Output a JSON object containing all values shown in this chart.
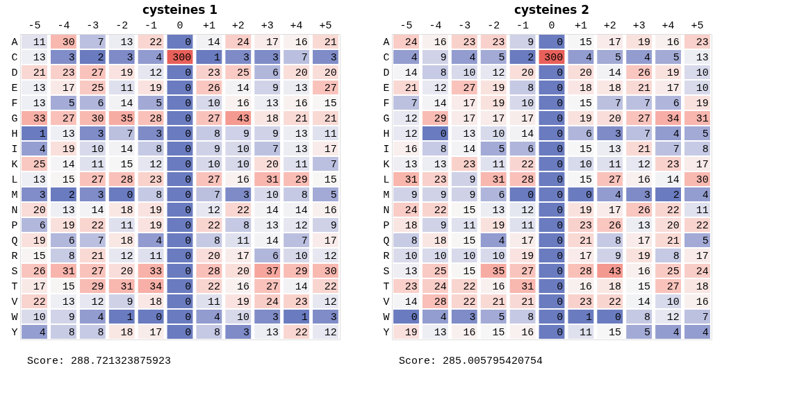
{
  "chart_data": [
    {
      "type": "heatmap",
      "title": "cysteines 1",
      "annotations": [
        "Score: 288.721323875923"
      ],
      "data_labels": true,
      "grid": false,
      "legend": false,
      "colors": [
        "#6a7bbf",
        "#f7f7f7",
        "#e8605a"
      ],
      "categories": [
        "-5",
        "-4",
        "-3",
        "-2",
        "-1",
        "0",
        "+1",
        "+2",
        "+3",
        "+4",
        "+5"
      ],
      "y_categories": [
        "A",
        "C",
        "D",
        "E",
        "F",
        "G",
        "H",
        "I",
        "K",
        "L",
        "M",
        "N",
        "P",
        "Q",
        "R",
        "S",
        "T",
        "V",
        "W",
        "Y"
      ],
      "cells": [
        [
          11,
          30,
          7,
          13,
          22,
          0,
          14,
          24,
          17,
          16,
          21
        ],
        [
          13,
          3,
          2,
          3,
          4,
          300,
          1,
          3,
          3,
          7,
          3
        ],
        [
          21,
          23,
          27,
          19,
          12,
          0,
          23,
          25,
          6,
          20,
          20
        ],
        [
          13,
          17,
          25,
          11,
          19,
          0,
          26,
          14,
          9,
          13,
          27
        ],
        [
          13,
          5,
          6,
          14,
          5,
          0,
          10,
          16,
          13,
          16,
          15
        ],
        [
          33,
          27,
          30,
          35,
          28,
          0,
          27,
          43,
          18,
          21,
          21
        ],
        [
          1,
          13,
          3,
          7,
          3,
          0,
          8,
          9,
          9,
          13,
          11
        ],
        [
          4,
          19,
          10,
          14,
          8,
          0,
          9,
          10,
          7,
          13,
          17
        ],
        [
          25,
          14,
          11,
          15,
          12,
          0,
          10,
          10,
          20,
          11,
          7
        ],
        [
          13,
          15,
          27,
          28,
          23,
          0,
          27,
          16,
          31,
          29,
          15
        ],
        [
          3,
          2,
          3,
          0,
          8,
          0,
          7,
          3,
          10,
          8,
          5
        ],
        [
          20,
          13,
          14,
          18,
          19,
          0,
          12,
          22,
          14,
          14,
          16
        ],
        [
          6,
          19,
          22,
          11,
          19,
          0,
          22,
          8,
          13,
          12,
          9
        ],
        [
          19,
          6,
          7,
          18,
          4,
          0,
          8,
          11,
          14,
          7,
          17
        ],
        [
          15,
          8,
          21,
          12,
          11,
          0,
          20,
          17,
          6,
          10,
          12
        ],
        [
          26,
          31,
          27,
          20,
          33,
          0,
          28,
          20,
          37,
          29,
          30
        ],
        [
          17,
          15,
          29,
          31,
          34,
          0,
          22,
          16,
          27,
          14,
          22
        ],
        [
          22,
          13,
          12,
          9,
          18,
          0,
          11,
          19,
          24,
          23,
          12
        ],
        [
          10,
          9,
          4,
          1,
          0,
          0,
          4,
          10,
          3,
          1,
          3
        ],
        [
          4,
          8,
          8,
          18,
          17,
          0,
          8,
          3,
          13,
          22,
          12
        ]
      ]
    },
    {
      "type": "heatmap",
      "title": "cysteines 2",
      "annotations": [
        "Score: 285.005795420754"
      ],
      "data_labels": true,
      "grid": false,
      "legend": false,
      "colors": [
        "#6a7bbf",
        "#f7f7f7",
        "#e8605a"
      ],
      "categories": [
        "-5",
        "-4",
        "-3",
        "-2",
        "-1",
        "0",
        "+1",
        "+2",
        "+3",
        "+4",
        "+5"
      ],
      "y_categories": [
        "A",
        "C",
        "D",
        "E",
        "F",
        "G",
        "H",
        "I",
        "K",
        "L",
        "M",
        "N",
        "P",
        "Q",
        "R",
        "S",
        "T",
        "V",
        "W",
        "Y"
      ],
      "cells": [
        [
          24,
          16,
          23,
          23,
          9,
          0,
          15,
          17,
          19,
          16,
          23
        ],
        [
          4,
          9,
          4,
          5,
          2,
          300,
          4,
          5,
          4,
          5,
          13
        ],
        [
          14,
          8,
          10,
          12,
          20,
          0,
          20,
          14,
          26,
          19,
          10
        ],
        [
          21,
          12,
          27,
          19,
          8,
          0,
          18,
          18,
          21,
          17,
          10
        ],
        [
          7,
          14,
          17,
          19,
          10,
          0,
          15,
          7,
          7,
          6,
          19
        ],
        [
          12,
          29,
          17,
          17,
          17,
          0,
          19,
          20,
          27,
          34,
          31
        ],
        [
          12,
          0,
          13,
          10,
          14,
          0,
          6,
          3,
          7,
          4,
          5
        ],
        [
          16,
          8,
          14,
          5,
          6,
          0,
          15,
          13,
          21,
          7,
          8
        ],
        [
          13,
          13,
          23,
          11,
          22,
          0,
          10,
          11,
          12,
          23,
          17
        ],
        [
          31,
          23,
          9,
          31,
          28,
          0,
          15,
          27,
          16,
          14,
          30
        ],
        [
          9,
          9,
          9,
          6,
          0,
          0,
          0,
          4,
          3,
          2,
          4
        ],
        [
          24,
          22,
          15,
          13,
          12,
          0,
          19,
          17,
          26,
          22,
          11
        ],
        [
          18,
          9,
          11,
          19,
          11,
          0,
          23,
          26,
          13,
          20,
          22
        ],
        [
          8,
          18,
          15,
          4,
          17,
          0,
          21,
          8,
          17,
          21,
          5
        ],
        [
          10,
          10,
          10,
          10,
          19,
          0,
          17,
          9,
          19,
          8,
          17
        ],
        [
          13,
          25,
          15,
          35,
          27,
          0,
          28,
          43,
          16,
          25,
          24
        ],
        [
          23,
          24,
          22,
          16,
          31,
          0,
          16,
          18,
          15,
          27,
          18
        ],
        [
          14,
          28,
          22,
          21,
          21,
          0,
          23,
          22,
          14,
          10,
          16
        ],
        [
          0,
          4,
          3,
          5,
          8,
          0,
          1,
          0,
          8,
          12,
          7
        ],
        [
          19,
          13,
          16,
          15,
          16,
          0,
          11,
          15,
          5,
          4,
          4
        ]
      ]
    }
  ]
}
